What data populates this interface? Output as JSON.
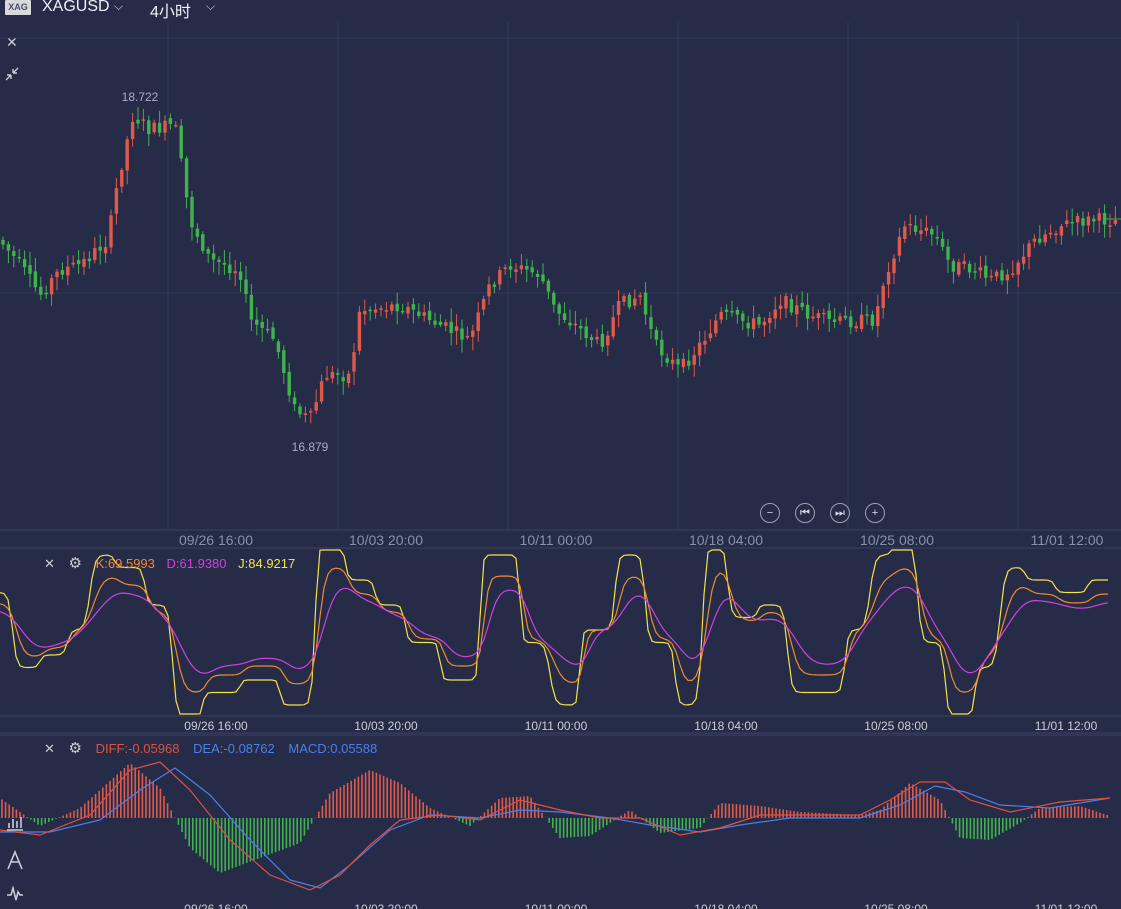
{
  "header": {
    "symbol_logo": "XAG",
    "symbol": "XAGUSD",
    "timeframe": "4小时",
    "caret": "⌵"
  },
  "price_chart": {
    "high_label": "18.722",
    "low_label": "16.879",
    "x_labels": [
      "09/26 16:00",
      "10/03 20:00",
      "10/11 00:00",
      "10/18 04:00",
      "10/25 08:00",
      "11/01 12:00"
    ]
  },
  "kdj": {
    "k_label": "K:69.5993",
    "d_label": "D:61.9380",
    "j_label": "J:84.9217",
    "x_labels": [
      "09/26 16:00",
      "10/03 20:00",
      "10/11 00:00",
      "10/18 04:00",
      "10/25 08:00",
      "11/01 12:00"
    ]
  },
  "macd": {
    "diff_label": "DIFF:-0.05968",
    "dea_label": "DEA:-0.08762",
    "macd_label": "MACD:0.05588",
    "x_labels": [
      "09/26 16:00",
      "10/03 20:00",
      "10/11 00:00",
      "10/18 04:00",
      "10/25 08:00",
      "11/01 12:00"
    ]
  },
  "colors": {
    "background": "#262c47",
    "up": "#e05a4b",
    "down": "#3fb44d",
    "k_line": "#f08a30",
    "d_line": "#d23fe0",
    "j_line": "#f3e24a",
    "diff_line": "#e0503f",
    "dea_line": "#4b7ff0"
  }
}
